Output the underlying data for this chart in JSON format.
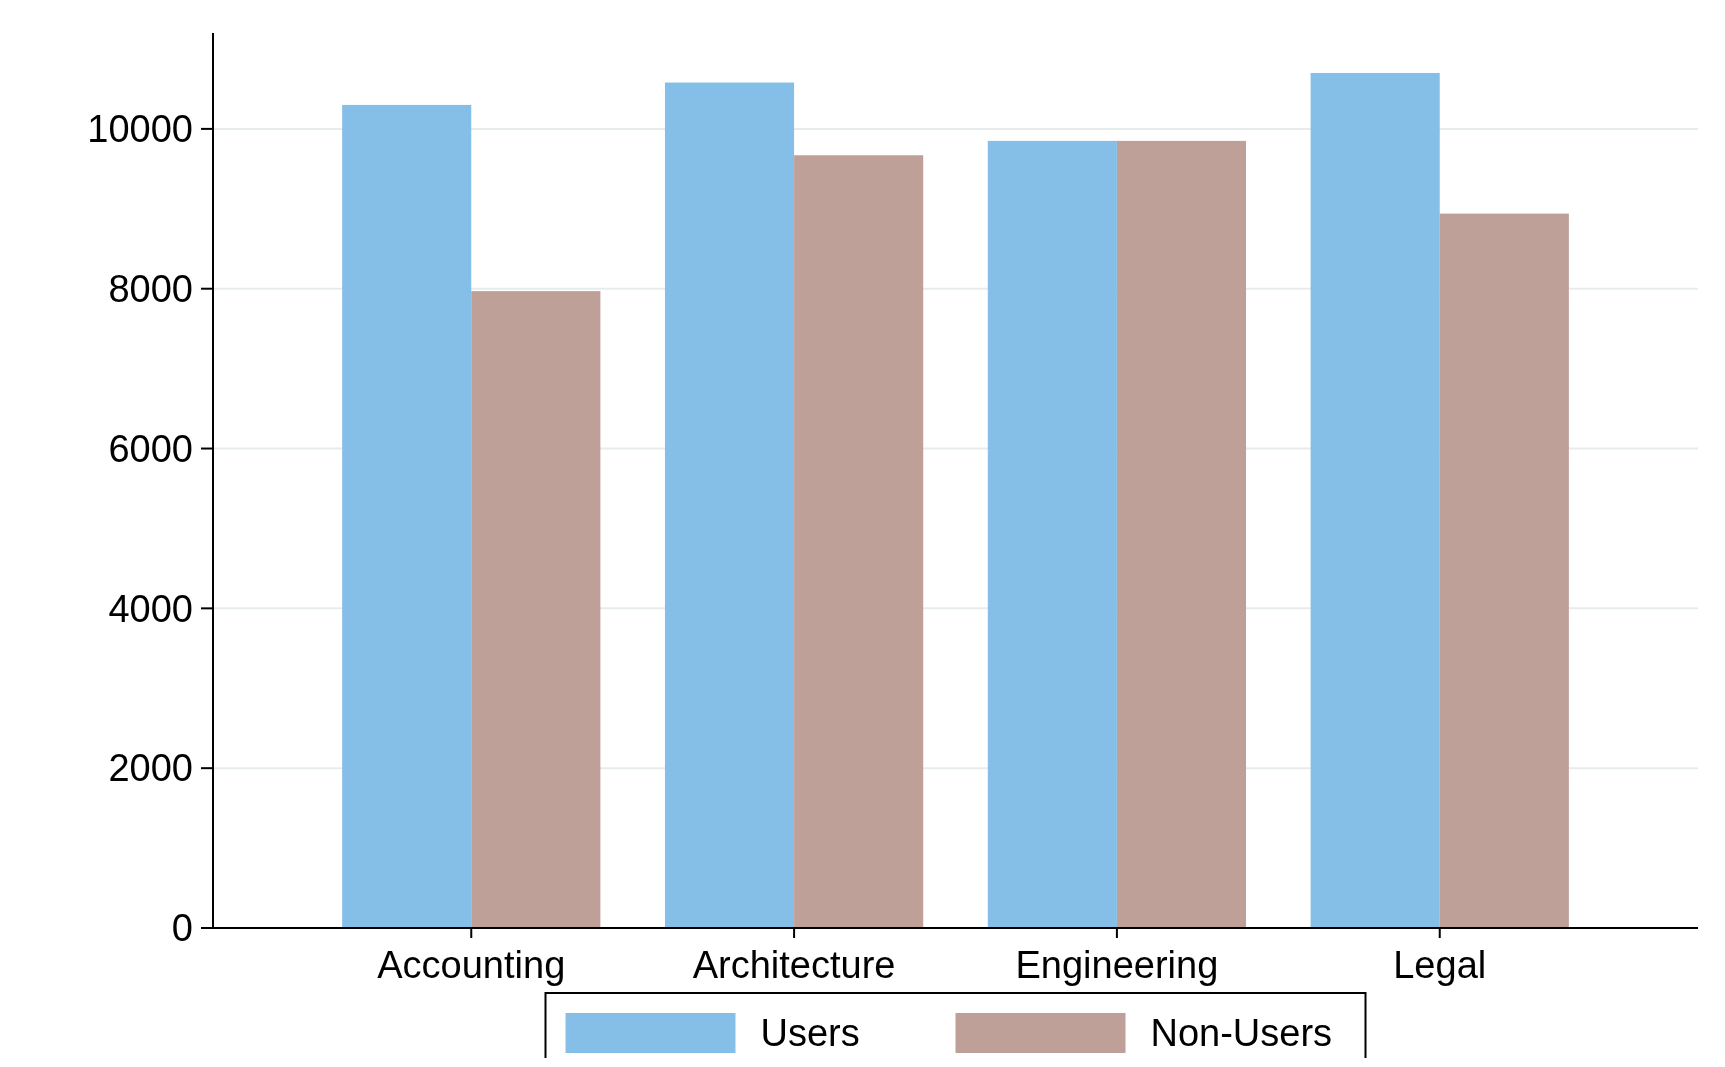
{
  "chart_data": {
    "type": "bar",
    "categories": [
      "Accounting",
      "Architecture",
      "Engineering",
      "Legal"
    ],
    "series": [
      {
        "name": "Users",
        "color": "#85bfe8",
        "values": [
          10300,
          10580,
          9850,
          10700
        ]
      },
      {
        "name": "Non-Users",
        "color": "#bfa098",
        "values": [
          7970,
          9670,
          9850,
          8940
        ]
      }
    ],
    "ylim": [
      0,
      11200
    ],
    "yticks": [
      0,
      2000,
      4000,
      6000,
      8000,
      10000
    ],
    "grid": "y",
    "legend": "bottom"
  }
}
